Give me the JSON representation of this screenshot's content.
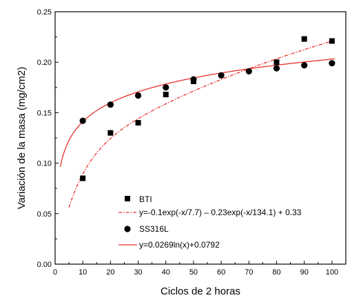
{
  "chart_data": {
    "type": "scatter",
    "title": "",
    "xlabel": "Ciclos de 2 horas",
    "ylabel": "Variación de la masa (mg/cm2)",
    "xlim": [
      0,
      105
    ],
    "ylim": [
      0,
      0.25
    ],
    "x_ticks": [
      0,
      10,
      20,
      30,
      40,
      50,
      60,
      70,
      80,
      90,
      100
    ],
    "y_ticks": [
      0.0,
      0.05,
      0.1,
      0.15,
      0.2,
      0.25
    ],
    "y_tick_labels": [
      "0.00",
      "0.05",
      "0.10",
      "0.15",
      "0.20",
      "0.25"
    ],
    "grid": false,
    "legend_position": "bottom-right",
    "series": [
      {
        "name": "BTI",
        "marker": "square",
        "color": "#000000",
        "x": [
          10,
          20,
          30,
          40,
          50,
          80,
          90,
          100
        ],
        "y": [
          0.085,
          0.13,
          0.14,
          0.168,
          0.181,
          0.2,
          0.223,
          0.221
        ]
      },
      {
        "name": "SS316L",
        "marker": "circle",
        "color": "#000000",
        "x": [
          10,
          20,
          30,
          40,
          50,
          60,
          70,
          80,
          90,
          100
        ],
        "y": [
          0.142,
          0.158,
          0.167,
          0.175,
          0.183,
          0.187,
          0.191,
          0.194,
          0.197,
          0.199
        ]
      }
    ],
    "fits": [
      {
        "label": "y=-0.1exp(-x/7.7) – 0.23exp(-x/134.1) + 0.33",
        "style": "dash-dot",
        "color": "#e8302a",
        "function": "biexp",
        "params": {
          "a": 0.1,
          "t1": 7.7,
          "b": 0.23,
          "t2": 134.1,
          "c": 0.33
        },
        "x_range": [
          5,
          100
        ]
      },
      {
        "label": "y=0.0269ln(x)+0.0792",
        "style": "solid",
        "color": "#e8302a",
        "function": "log",
        "params": {
          "a": 0.0269,
          "b": 0.0792
        },
        "x_range": [
          1.9,
          101
        ]
      }
    ]
  }
}
